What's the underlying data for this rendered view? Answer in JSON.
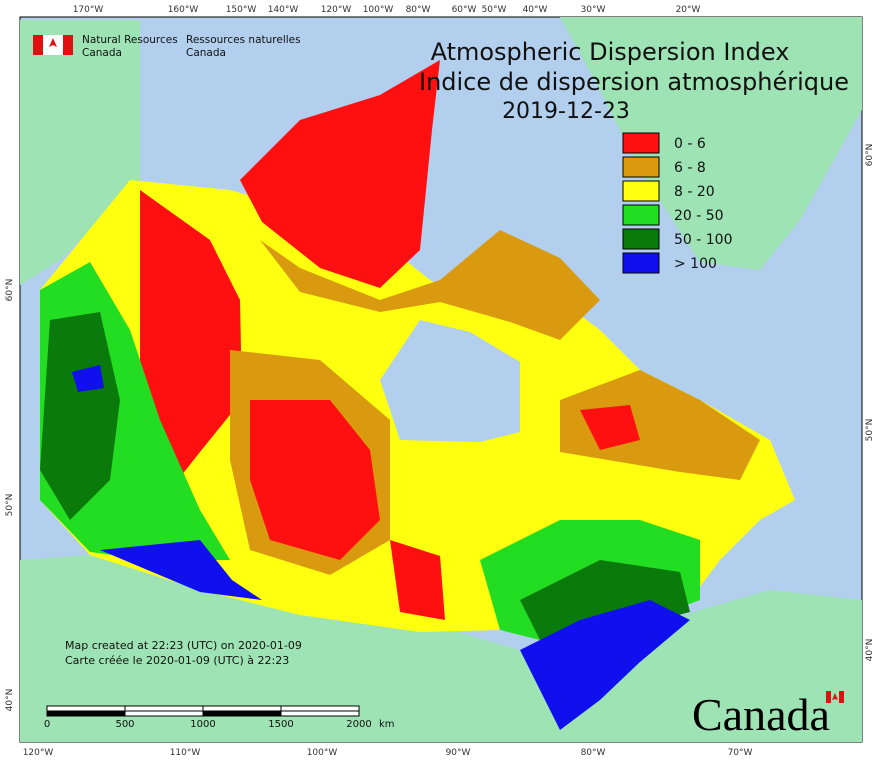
{
  "header": {
    "agency_en": [
      "Natural Resources",
      "Canada"
    ],
    "agency_fr": [
      "Ressources naturelles",
      "Canada"
    ]
  },
  "title": [
    "Atmospheric Dispersion Index",
    "Indice de dispersion atmosphérique"
  ],
  "date": "2019-12-23",
  "legend": [
    {
      "label": "0 - 6",
      "color": "#ff1010"
    },
    {
      "label": "6 - 8",
      "color": "#d99a10"
    },
    {
      "label": "8 - 20",
      "color": "#ffff10"
    },
    {
      "label": "20 - 50",
      "color": "#22dd22"
    },
    {
      "label": "50 - 100",
      "color": "#0a7a0a"
    },
    {
      "label": "> 100",
      "color": "#1010ee"
    }
  ],
  "top_longitudes": [
    "170°W",
    "160°W",
    "150°W",
    "140°W",
    "120°W",
    "100°W",
    "80°W",
    "60°W",
    "50°W",
    "40°W",
    "30°W",
    "20°W"
  ],
  "bottom_longitudes": [
    "120°W",
    "110°W",
    "100°W",
    "90°W",
    "80°W",
    "70°W"
  ],
  "left_latitudes": [
    "60°N",
    "50°N",
    "40°N"
  ],
  "right_latitudes": [
    "60°N",
    "50°N",
    "40°N"
  ],
  "created": [
    "Map created at 22:23 (UTC) on 2020-01-09",
    "Carte créée le 2020-01-09 (UTC) à 22:23"
  ],
  "scale_bar": {
    "labels": [
      0,
      500,
      1000,
      1500,
      2000
    ],
    "unit": "km"
  },
  "wordmark": "Canada"
}
